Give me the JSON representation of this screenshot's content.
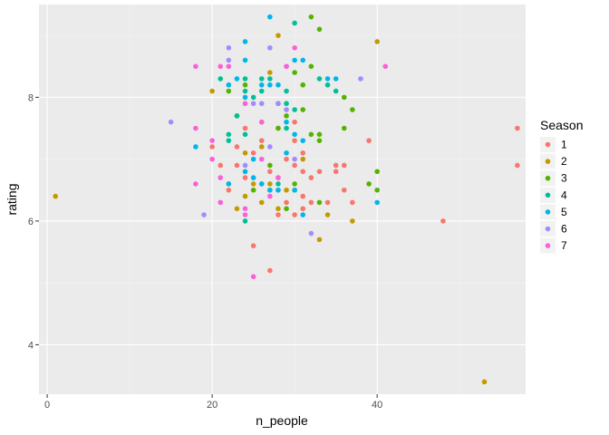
{
  "chart_data": {
    "type": "scatter",
    "xlabel": "n_people",
    "ylabel": "rating",
    "xlim": [
      -1,
      58
    ],
    "ylim": [
      3.2,
      9.5
    ],
    "x_ticks": [
      0,
      20,
      40
    ],
    "y_ticks": [
      4,
      6,
      8
    ],
    "x_tick_labels": [
      "0",
      "20",
      "40"
    ],
    "y_tick_labels": [
      "4",
      "6",
      "8"
    ],
    "grid": true,
    "panel_background": "#ebebeb",
    "legend": {
      "title": "Season",
      "placement": "right"
    },
    "series": [
      {
        "name": "1",
        "color": "#F8766D",
        "points": [
          [
            57,
            7.5
          ],
          [
            57,
            6.9
          ],
          [
            48,
            6.0
          ],
          [
            39,
            7.3
          ],
          [
            37,
            6.3
          ],
          [
            36,
            6.9
          ],
          [
            36,
            6.5
          ],
          [
            35,
            6.9
          ],
          [
            35,
            6.8
          ],
          [
            34,
            6.3
          ],
          [
            33,
            6.8
          ],
          [
            32,
            6.7
          ],
          [
            32,
            6.3
          ],
          [
            31,
            7.1
          ],
          [
            31,
            6.8
          ],
          [
            31,
            6.4
          ],
          [
            31,
            6.2
          ],
          [
            30,
            7.6
          ],
          [
            30,
            7.3
          ],
          [
            30,
            6.9
          ],
          [
            30,
            6.1
          ],
          [
            29,
            7.0
          ],
          [
            29,
            6.3
          ],
          [
            28,
            7.5
          ],
          [
            28,
            6.7
          ],
          [
            28,
            6.5
          ],
          [
            28,
            6.1
          ],
          [
            27,
            5.2
          ],
          [
            27,
            6.8
          ],
          [
            26,
            7.3
          ],
          [
            26,
            6.6
          ],
          [
            25,
            7.1
          ],
          [
            25,
            5.6
          ],
          [
            24,
            7.5
          ],
          [
            24,
            6.7
          ],
          [
            23,
            7.2
          ],
          [
            23,
            6.9
          ],
          [
            22,
            6.5
          ],
          [
            21,
            6.9
          ],
          [
            20,
            7.2
          ]
        ]
      },
      {
        "name": "2",
        "color": "#C49A00",
        "points": [
          [
            1,
            6.4
          ],
          [
            53,
            3.4
          ],
          [
            40,
            8.9
          ],
          [
            37,
            6.0
          ],
          [
            33,
            5.7
          ],
          [
            34,
            6.1
          ],
          [
            31,
            7.0
          ],
          [
            29,
            6.5
          ],
          [
            30,
            6.5
          ],
          [
            28,
            9.0
          ],
          [
            28,
            6.2
          ],
          [
            27,
            8.4
          ],
          [
            27,
            6.6
          ],
          [
            26,
            7.2
          ],
          [
            26,
            6.3
          ],
          [
            25,
            6.6
          ],
          [
            24,
            6.4
          ],
          [
            24,
            7.1
          ],
          [
            23,
            6.2
          ],
          [
            22,
            6.6
          ],
          [
            20,
            8.1
          ]
        ]
      },
      {
        "name": "3",
        "color": "#53B400",
        "points": [
          [
            32,
            9.3
          ],
          [
            33,
            9.1
          ],
          [
            32,
            8.5
          ],
          [
            31,
            8.2
          ],
          [
            30,
            8.4
          ],
          [
            31,
            7.8
          ],
          [
            32,
            7.4
          ],
          [
            33,
            7.4
          ],
          [
            33,
            7.3
          ],
          [
            36,
            8.0
          ],
          [
            36,
            7.5
          ],
          [
            37,
            7.8
          ],
          [
            39,
            6.6
          ],
          [
            40,
            6.8
          ],
          [
            40,
            6.5
          ],
          [
            33,
            6.3
          ],
          [
            30,
            6.6
          ],
          [
            29,
            6.2
          ],
          [
            28,
            7.5
          ],
          [
            29,
            7.7
          ],
          [
            27,
            6.9
          ],
          [
            26,
            7.6
          ],
          [
            25,
            6.5
          ],
          [
            24,
            8.2
          ],
          [
            23,
            7.7
          ],
          [
            22,
            8.1
          ]
        ]
      },
      {
        "name": "4",
        "color": "#00C094",
        "points": [
          [
            30,
            9.2
          ],
          [
            35,
            8.1
          ],
          [
            34,
            8.2
          ],
          [
            33,
            8.3
          ],
          [
            29,
            8.1
          ],
          [
            29,
            7.9
          ],
          [
            30,
            7.8
          ],
          [
            29,
            7.5
          ],
          [
            28,
            7.9
          ],
          [
            27,
            8.3
          ],
          [
            26,
            8.3
          ],
          [
            26,
            8.1
          ],
          [
            25,
            8.0
          ],
          [
            24,
            8.3
          ],
          [
            24,
            8.1
          ],
          [
            24,
            7.4
          ],
          [
            23,
            7.7
          ],
          [
            22,
            7.4
          ],
          [
            22,
            7.3
          ],
          [
            21,
            8.3
          ],
          [
            24,
            6.0
          ],
          [
            27,
            6.5
          ],
          [
            28,
            6.6
          ]
        ]
      },
      {
        "name": "5",
        "color": "#00B6EB",
        "points": [
          [
            27,
            9.3
          ],
          [
            24,
            8.9
          ],
          [
            24,
            8.6
          ],
          [
            23,
            8.3
          ],
          [
            22,
            8.2
          ],
          [
            26,
            8.2
          ],
          [
            27,
            8.2
          ],
          [
            28,
            8.2
          ],
          [
            30,
            8.6
          ],
          [
            31,
            8.6
          ],
          [
            34,
            8.3
          ],
          [
            35,
            8.3
          ],
          [
            29,
            7.6
          ],
          [
            30,
            7.4
          ],
          [
            31,
            7.3
          ],
          [
            29,
            7.1
          ],
          [
            25,
            7.0
          ],
          [
            24,
            6.8
          ],
          [
            25,
            6.7
          ],
          [
            26,
            6.6
          ],
          [
            27,
            6.5
          ],
          [
            28,
            6.5
          ],
          [
            30,
            6.5
          ],
          [
            31,
            6.1
          ],
          [
            22,
            6.6
          ],
          [
            18,
            7.2
          ],
          [
            40,
            6.3
          ],
          [
            24,
            8.0
          ]
        ]
      },
      {
        "name": "6",
        "color": "#A58AFF",
        "points": [
          [
            15,
            7.6
          ],
          [
            19,
            6.1
          ],
          [
            22,
            8.8
          ],
          [
            22,
            8.6
          ],
          [
            25,
            7.9
          ],
          [
            26,
            7.9
          ],
          [
            27,
            7.2
          ],
          [
            28,
            7.9
          ],
          [
            29,
            8.5
          ],
          [
            29,
            7.8
          ],
          [
            24,
            6.9
          ],
          [
            32,
            5.8
          ],
          [
            38,
            8.3
          ],
          [
            30,
            7.0
          ],
          [
            27,
            8.8
          ]
        ]
      },
      {
        "name": "7",
        "color": "#FB61D7",
        "points": [
          [
            18,
            8.5
          ],
          [
            18,
            7.5
          ],
          [
            18,
            6.6
          ],
          [
            20,
            7.3
          ],
          [
            20,
            7.0
          ],
          [
            21,
            8.5
          ],
          [
            21,
            6.7
          ],
          [
            21,
            6.3
          ],
          [
            22,
            8.5
          ],
          [
            24,
            7.9
          ],
          [
            24,
            6.2
          ],
          [
            24,
            6.1
          ],
          [
            25,
            5.1
          ],
          [
            28,
            6.7
          ],
          [
            29,
            8.5
          ],
          [
            30,
            8.8
          ],
          [
            41,
            8.5
          ],
          [
            26,
            7.0
          ],
          [
            27,
            6.4
          ],
          [
            26,
            7.6
          ]
        ]
      }
    ]
  }
}
